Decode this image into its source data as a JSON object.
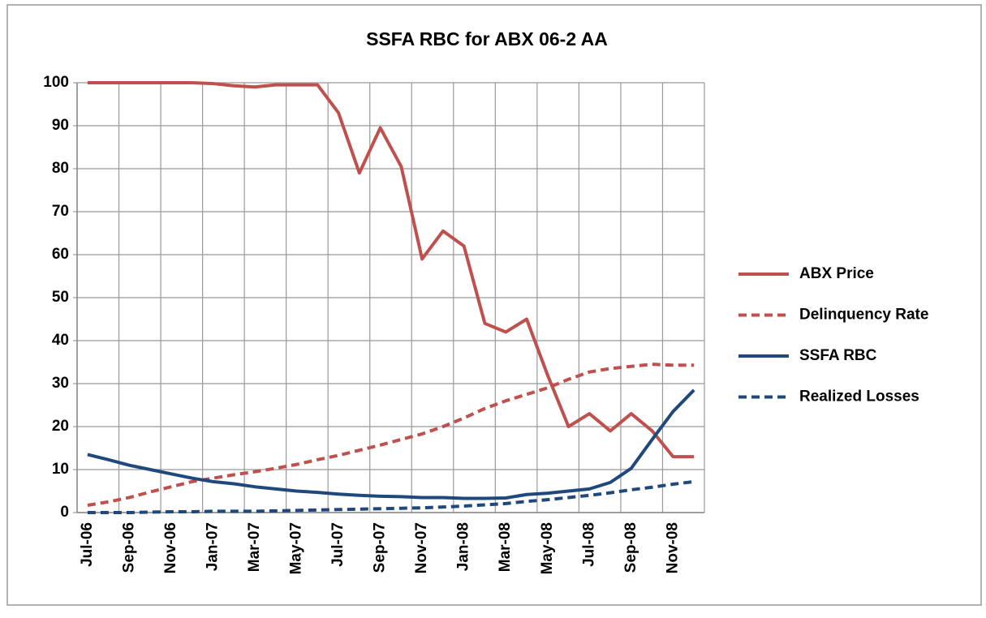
{
  "chart_data": {
    "type": "line",
    "title": "SSFA RBC for ABX 06-2 AA",
    "categories": [
      "Jul-06",
      null,
      "Sep-06",
      null,
      "Nov-06",
      null,
      "Jan-07",
      null,
      "Mar-07",
      null,
      "May-07",
      null,
      "Jul-07",
      null,
      "Sep-07",
      null,
      "Nov-07",
      null,
      "Jan-08",
      null,
      "Mar-08",
      null,
      "May-08",
      null,
      "Jul-08",
      null,
      "Sep-08",
      null,
      "Nov-08",
      null
    ],
    "series": [
      {
        "name": "ABX Price",
        "color": "#c0504d",
        "line_style": "solid",
        "values": [
          100,
          100,
          100,
          100,
          100,
          100,
          99.8,
          99.3,
          99,
          99.5,
          99.5,
          99.5,
          93,
          79,
          89.5,
          80.5,
          59,
          65.5,
          62,
          44,
          42,
          45,
          32,
          20,
          23,
          19,
          23,
          19,
          13,
          13
        ]
      },
      {
        "name": "Delinquency Rate",
        "color": "#c0504d",
        "line_style": "dashed",
        "values": [
          1.7,
          2.5,
          3.5,
          4.8,
          6,
          7.2,
          8,
          8.8,
          9.5,
          10.3,
          11.2,
          12.3,
          13.3,
          14.5,
          15.7,
          17,
          18.3,
          20,
          22,
          24.2,
          26,
          27.5,
          29,
          31,
          32.7,
          33.5,
          34,
          34.5,
          34.3,
          34.3
        ]
      },
      {
        "name": "SSFA RBC",
        "color": "#1f497d",
        "line_style": "solid",
        "values": [
          13.5,
          12.3,
          11,
          10,
          9,
          8,
          7.2,
          6.7,
          6,
          5.5,
          5,
          4.7,
          4.3,
          4,
          3.8,
          3.7,
          3.5,
          3.5,
          3.3,
          3.3,
          3.4,
          4.2,
          4.5,
          5,
          5.5,
          7,
          10.3,
          17,
          23.5,
          28.5
        ]
      },
      {
        "name": "Realized Losses",
        "color": "#1f497d",
        "line_style": "dashed",
        "values": [
          0,
          0,
          0,
          0.1,
          0.2,
          0.2,
          0.3,
          0.3,
          0.3,
          0.4,
          0.5,
          0.6,
          0.7,
          0.8,
          0.9,
          1,
          1.1,
          1.3,
          1.5,
          1.8,
          2.1,
          2.6,
          3,
          3.5,
          4,
          4.6,
          5.3,
          5.9,
          6.6,
          7.2
        ]
      }
    ],
    "ylim": [
      0,
      100
    ],
    "yticks": [
      0,
      10,
      20,
      30,
      40,
      50,
      60,
      70,
      80,
      90,
      100
    ],
    "grid": true,
    "legend": "right"
  }
}
